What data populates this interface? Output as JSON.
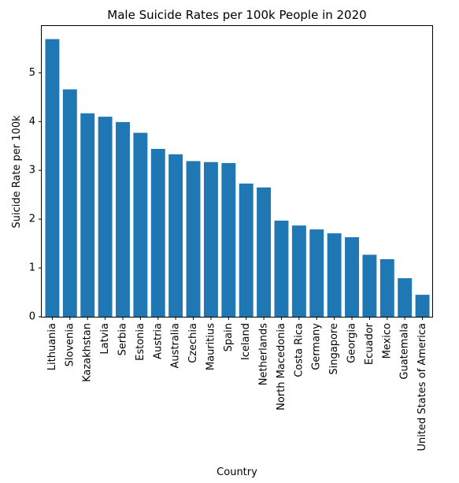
{
  "chart_data": {
    "type": "bar",
    "title": "Male Suicide Rates per 100k People in 2020",
    "xlabel": "Country",
    "ylabel": "Suicide Rate per 100k",
    "categories": [
      "Lithuania",
      "Slovenia",
      "Kazakhstan",
      "Latvia",
      "Serbia",
      "Estonia",
      "Austria",
      "Australia",
      "Czechia",
      "Mauritius",
      "Spain",
      "Iceland",
      "Netherlands",
      "North Macedonia",
      "Costa Rica",
      "Germany",
      "Singapore",
      "Georgia",
      "Ecuador",
      "Mexico",
      "Guatemala",
      "United States of America"
    ],
    "values": [
      5.69,
      4.66,
      4.17,
      4.1,
      3.99,
      3.77,
      3.44,
      3.33,
      3.19,
      3.17,
      3.15,
      2.73,
      2.65,
      1.97,
      1.87,
      1.79,
      1.71,
      1.63,
      1.27,
      1.18,
      0.79,
      0.45
    ],
    "ylim": [
      0,
      5.975
    ],
    "yticks": [
      0,
      1,
      2,
      3,
      4,
      5
    ],
    "grid": false,
    "legend": "none",
    "colors": {
      "bar": "#1f77b4",
      "axis": "#000000",
      "background": "#ffffff"
    }
  }
}
